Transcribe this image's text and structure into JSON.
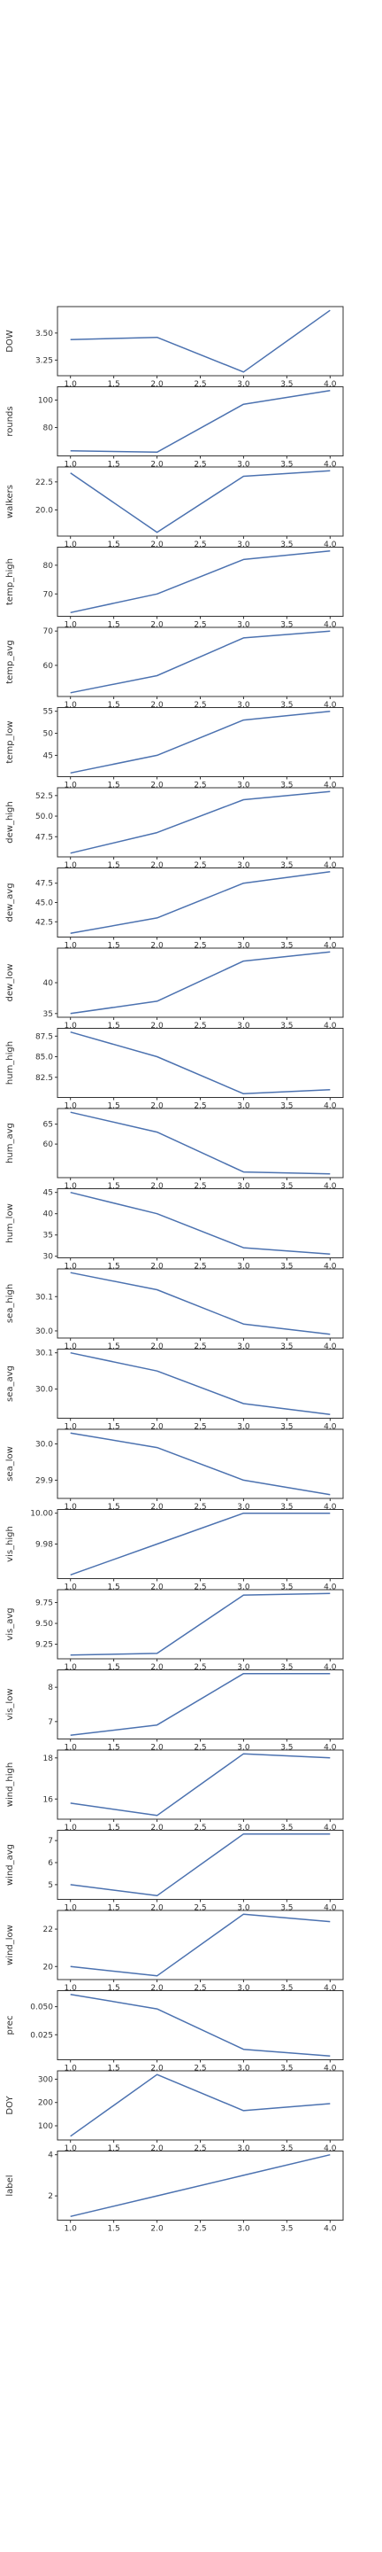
{
  "chart_data": {
    "type": "line",
    "shared_x": true,
    "line_color": "#4c72b0",
    "x": [
      1,
      2,
      3,
      4
    ],
    "xticks": [
      "1.0",
      "1.5",
      "2.0",
      "2.5",
      "3.0",
      "3.5",
      "4.0"
    ],
    "panels": [
      {
        "ylabel": "DOW",
        "values": [
          3.44,
          3.46,
          3.14,
          3.71
        ],
        "yticks": [
          "3.25",
          "3.50"
        ]
      },
      {
        "ylabel": "rounds",
        "values": [
          63,
          62,
          97,
          107
        ],
        "yticks": [
          "80",
          "100"
        ]
      },
      {
        "ylabel": "walkers",
        "values": [
          23.3,
          18.0,
          23.0,
          23.5
        ],
        "yticks": [
          "20.0",
          "22.5"
        ]
      },
      {
        "ylabel": "temp_high",
        "values": [
          63.5,
          70,
          82,
          85
        ],
        "yticks": [
          "70",
          "80"
        ]
      },
      {
        "ylabel": "temp_avg",
        "values": [
          52,
          57,
          68,
          70
        ],
        "yticks": [
          "60",
          "70"
        ]
      },
      {
        "ylabel": "temp_low",
        "values": [
          41,
          45,
          53,
          55
        ],
        "yticks": [
          "45",
          "50",
          "55"
        ]
      },
      {
        "ylabel": "dew_high",
        "values": [
          45.5,
          48,
          52,
          53
        ],
        "yticks": [
          "47.5",
          "50.0",
          "52.5"
        ]
      },
      {
        "ylabel": "dew_avg",
        "values": [
          41,
          43,
          47.5,
          49
        ],
        "yticks": [
          "42.5",
          "45.0",
          "47.5"
        ]
      },
      {
        "ylabel": "dew_low",
        "values": [
          35,
          37,
          43.5,
          45
        ],
        "yticks": [
          "35",
          "40"
        ]
      },
      {
        "ylabel": "hum_high",
        "values": [
          88,
          85,
          80.5,
          81
        ],
        "yticks": [
          "82.5",
          "85.0",
          "87.5"
        ]
      },
      {
        "ylabel": "hum_avg",
        "values": [
          68,
          63,
          53,
          52.5
        ],
        "yticks": [
          "60",
          "65"
        ]
      },
      {
        "ylabel": "hum_low",
        "values": [
          45,
          40,
          32,
          30.5
        ],
        "yticks": [
          "30",
          "35",
          "40",
          "45"
        ]
      },
      {
        "ylabel": "sea_high",
        "values": [
          30.17,
          30.12,
          30.02,
          29.99
        ],
        "yticks": [
          "30.0",
          "30.1"
        ]
      },
      {
        "ylabel": "sea_avg",
        "values": [
          30.1,
          30.05,
          29.96,
          29.93
        ],
        "yticks": [
          "30.0",
          "30.1"
        ]
      },
      {
        "ylabel": "sea_low",
        "values": [
          30.03,
          29.99,
          29.9,
          29.86
        ],
        "yticks": [
          "29.9",
          "30.0"
        ]
      },
      {
        "ylabel": "vis_high",
        "values": [
          9.96,
          9.98,
          10.0,
          10.0
        ],
        "yticks": [
          "9.98",
          "10.00"
        ]
      },
      {
        "ylabel": "vis_avg",
        "values": [
          9.12,
          9.14,
          9.84,
          9.86
        ],
        "yticks": [
          "9.25",
          "9.50",
          "9.75"
        ]
      },
      {
        "ylabel": "vis_low",
        "values": [
          6.6,
          6.9,
          8.4,
          8.4
        ],
        "yticks": [
          "7",
          "8"
        ]
      },
      {
        "ylabel": "wind_high",
        "values": [
          15.8,
          15.2,
          18.2,
          18.0
        ],
        "yticks": [
          "16",
          "18"
        ]
      },
      {
        "ylabel": "wind_avg",
        "values": [
          5.0,
          4.5,
          7.3,
          7.3
        ],
        "yticks": [
          "5",
          "6",
          "7"
        ]
      },
      {
        "ylabel": "wind_low",
        "values": [
          20.0,
          19.5,
          22.8,
          22.4
        ],
        "yticks": [
          "20",
          "22"
        ]
      },
      {
        "ylabel": "prec",
        "values": [
          0.061,
          0.048,
          0.012,
          0.006
        ],
        "yticks": [
          "0.025",
          "0.050"
        ]
      },
      {
        "ylabel": "DOY",
        "values": [
          55,
          320,
          165,
          195
        ],
        "yticks": [
          "100",
          "200",
          "300"
        ]
      },
      {
        "ylabel": "label",
        "values": [
          1,
          2,
          3,
          4
        ],
        "yticks": [
          "2",
          "4"
        ]
      }
    ]
  }
}
